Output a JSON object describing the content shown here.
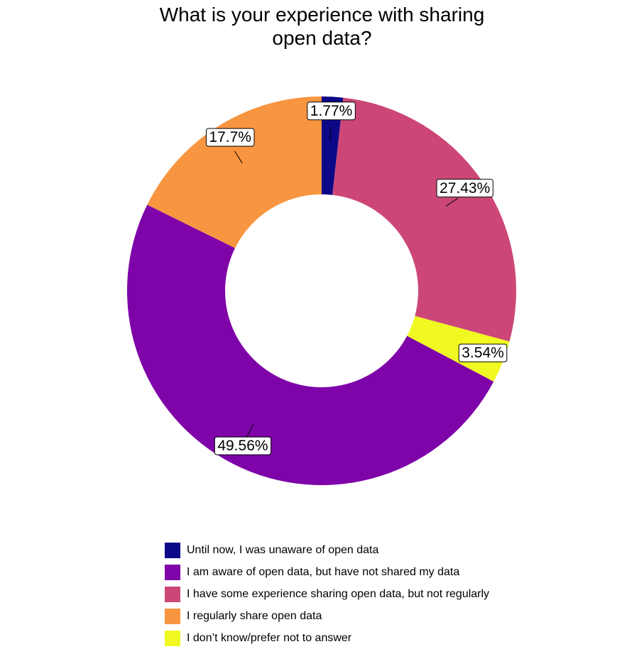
{
  "chart_data": {
    "type": "pie",
    "title_lines": [
      "What is your experience with sharing",
      "open data?"
    ],
    "slices": [
      {
        "name": "Until now, I was unaware of open data",
        "value": 1.77,
        "label": "1.77%",
        "color": "#0d0887"
      },
      {
        "name": "I have some experience sharing open data, but not regularly",
        "value": 27.43,
        "label": "27.43%",
        "color": "#cc4778"
      },
      {
        "name": "I don’t know/prefer not to answer",
        "value": 3.54,
        "label": "3.54%",
        "color": "#f0f921"
      },
      {
        "name": "I am aware of open data, but have not shared my data",
        "value": 49.56,
        "label": "49.56%",
        "color": "#7e03a8"
      },
      {
        "name": "I regularly share open data",
        "value": 17.7,
        "label": "17.7%",
        "color": "#f89540"
      }
    ],
    "legend": [
      {
        "label": "Until now, I was unaware of open data",
        "color": "#0d0887"
      },
      {
        "label": "I am aware of open data, but have not shared my data",
        "color": "#7e03a8"
      },
      {
        "label": "I have some experience sharing open data, but not regularly",
        "color": "#cc4778"
      },
      {
        "label": "I regularly share open data",
        "color": "#f89540"
      },
      {
        "label": "I don’t know/prefer not to answer",
        "color": "#f0f921"
      }
    ],
    "legend_position": "bottom"
  }
}
